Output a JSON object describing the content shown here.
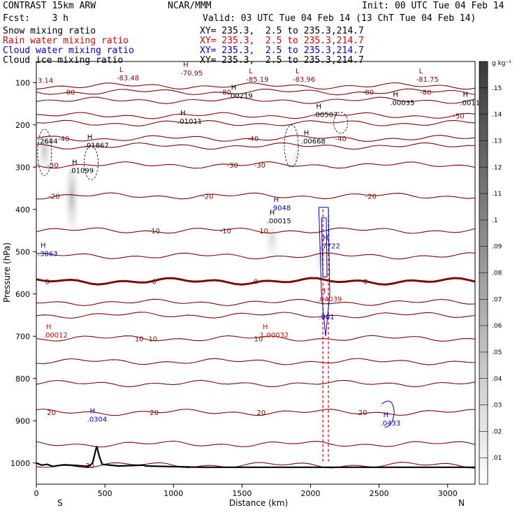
{
  "header": {
    "line1_left": "CONTRAST 15km ARW",
    "line1_center": "NCAR/MMM",
    "line1_right": "Init: 00 UTC Tue 04 Feb 14",
    "line2_left": "Fcst:    3 h",
    "line2_right": "Valid: 03 UTC Tue 04 Feb 14 (13 ChT Tue 04 Feb 14)",
    "fields": [
      {
        "name": "Snow mixing ratio",
        "xy": "XY= 235.3,  2.5 to 235.3,214.7",
        "color": "#000000"
      },
      {
        "name": "Rain water mixing ratio",
        "xy": "XY= 235.3,  2.5 to 235.3,214.7",
        "color": "#e00000"
      },
      {
        "name": "Cloud water mixing ratio",
        "xy": "XY= 235.3,  2.5 to 235.3,214.7",
        "color": "#0000cc"
      },
      {
        "name": "Cloud ice mixing ratio",
        "xy": "XY= 235.3,  2.5 to 235.3,214.7",
        "color": "#000000"
      }
    ]
  },
  "colorbar": {
    "unit": "g kg⁻¹",
    "ticks": [
      ".01",
      ".02",
      ".03",
      ".04",
      ".05",
      ".06",
      ".07",
      ".08",
      ".09",
      ".1",
      ".11",
      ".12",
      ".13",
      ".14",
      ".15"
    ]
  },
  "colors": {
    "temperature": "#7a0a0a",
    "rain": "#e00000",
    "cloud_water": "#0000cc",
    "terrain": "#000000"
  },
  "chart_data": {
    "type": "cross-section",
    "xlabel": "Distance (km)",
    "ylabel": "Pressure (hPa)",
    "x_ticks": [
      0,
      500,
      1000,
      1500,
      2000,
      2500,
      3000
    ],
    "y_ticks": [
      100,
      200,
      300,
      400,
      500,
      600,
      700,
      800,
      900,
      1000
    ],
    "xlim": [
      0,
      3200
    ],
    "ylim": [
      1050,
      50
    ],
    "x_end_labels": {
      "left": "S",
      "right": "N"
    },
    "temperature_contours_C": [
      {
        "value": -80,
        "p": 122,
        "labels": [
          {
            "x": 240,
            "text": "-80"
          },
          {
            "x": 1380,
            "text": "-80"
          },
          {
            "x": 2420,
            "text": "-80"
          },
          {
            "x": 2840,
            "text": "-80"
          }
        ]
      },
      {
        "value": -70,
        "p": 108,
        "labels": []
      },
      {
        "value": -60,
        "p": 142,
        "labels": []
      },
      {
        "value": -50,
        "p": 178,
        "labels": [
          {
            "x": 3080,
            "text": "-50"
          }
        ]
      },
      {
        "value": -45,
        "p": 196,
        "labels": []
      },
      {
        "value": -40,
        "p": 232,
        "labels": [
          {
            "x": 200,
            "text": "-40"
          },
          {
            "x": 1580,
            "text": "-40"
          },
          {
            "x": 2220,
            "text": "-40"
          }
        ]
      },
      {
        "value": -35,
        "p": 250,
        "labels": []
      },
      {
        "value": -30,
        "p": 295,
        "labels": [
          {
            "x": 120,
            "text": "-30"
          },
          {
            "x": 1430,
            "text": "-30"
          },
          {
            "x": 1630,
            "text": "-30"
          }
        ]
      },
      {
        "value": -20,
        "p": 368,
        "labels": [
          {
            "x": 1250,
            "text": "-20"
          },
          {
            "x": 2440,
            "text": "-20"
          },
          {
            "x": 130,
            "text": "-20"
          }
        ]
      },
      {
        "value": -10,
        "p": 450,
        "labels": [
          {
            "x": 860,
            "text": "-10"
          },
          {
            "x": 1380,
            "text": "-10"
          },
          {
            "x": 1650,
            "text": "-10"
          }
        ]
      },
      {
        "value": -5,
        "p": 510,
        "labels": []
      },
      {
        "value": 0,
        "p": 570,
        "labels": [
          {
            "x": 860,
            "text": "0"
          },
          {
            "x": 1600,
            "text": "0"
          },
          {
            "x": 2400,
            "text": "0"
          },
          {
            "x": 80,
            "text": "0"
          }
        ]
      },
      {
        "value": 3,
        "p": 620,
        "labels": []
      },
      {
        "value": 5,
        "p": 650,
        "labels": []
      },
      {
        "value": 10,
        "p": 705,
        "labels": [
          {
            "x": 750,
            "text": "10"
          },
          {
            "x": 850,
            "text": "10"
          },
          {
            "x": 1620,
            "text": "10"
          }
        ]
      },
      {
        "value": 13,
        "p": 760,
        "labels": []
      },
      {
        "value": 15,
        "p": 812,
        "labels": []
      },
      {
        "value": 20,
        "p": 880,
        "labels": [
          {
            "x": 110,
            "text": "20"
          },
          {
            "x": 860,
            "text": "20"
          },
          {
            "x": 1640,
            "text": "20"
          },
          {
            "x": 2380,
            "text": "20"
          }
        ]
      },
      {
        "value": 25,
        "p": 955,
        "labels": []
      },
      {
        "value": 30,
        "p": 1005,
        "labels": [
          {
            "x": 390,
            "text": "30"
          }
        ]
      }
    ],
    "extrema_labels": [
      {
        "x": 1040,
        "p": 83,
        "kind": "H",
        "value": "-70.95",
        "color": "#7a0a0a"
      },
      {
        "x": 575,
        "p": 95,
        "kind": "L",
        "value": "-83.48",
        "color": "#7a0a0a"
      },
      {
        "x": 1520,
        "p": 98,
        "kind": "L",
        "value": "-85.19",
        "color": "#7a0a0a"
      },
      {
        "x": 1860,
        "p": 98,
        "kind": "L",
        "value": "-83.96",
        "color": "#7a0a0a"
      },
      {
        "x": 2760,
        "p": 98,
        "kind": "L",
        "value": "-81.75",
        "color": "#7a0a0a"
      },
      {
        "x": 0,
        "p": 100,
        "kind": "",
        "value": "3.14",
        "color": "#7a0a0a"
      },
      {
        "x": 1390,
        "p": 137,
        "kind": "H",
        "value": ".00219",
        "color": "#000000"
      },
      {
        "x": 2570,
        "p": 153,
        "kind": "H",
        "value": ".00035",
        "color": "#000000"
      },
      {
        "x": 3080,
        "p": 153,
        "kind": "H",
        "value": ".0011",
        "color": "#000000"
      },
      {
        "x": 2010,
        "p": 181,
        "kind": "H",
        "value": ".00507",
        "color": "#000000"
      },
      {
        "x": 1020,
        "p": 197,
        "kind": "H",
        "value": ".01011",
        "color": "#000000"
      },
      {
        "x": 1920,
        "p": 244,
        "kind": "H",
        "value": ".00668",
        "color": "#000000"
      },
      {
        "x": 340,
        "p": 254,
        "kind": "H",
        "value": ".01867",
        "color": "#000000"
      },
      {
        "x": 0,
        "p": 244,
        "kind": "",
        "value": ".2644",
        "color": "#000000"
      },
      {
        "x": 230,
        "p": 314,
        "kind": "H",
        "value": ".01099",
        "color": "#000000"
      },
      {
        "x": 1670,
        "p": 433,
        "kind": "H",
        "value": ".00015",
        "color": "#000000"
      },
      {
        "x": 1700,
        "p": 402,
        "kind": "H",
        "value": ".9048",
        "color": "#0000cc"
      },
      {
        "x": 0,
        "p": 510,
        "kind": "H",
        "value": ".3863",
        "color": "#0000cc"
      },
      {
        "x": 2060,
        "p": 492,
        "kind": "H",
        "value": ".7722",
        "color": "#0000cc"
      },
      {
        "x": 2040,
        "p": 618,
        "kind": "H",
        "value": ".04039",
        "color": "#e00000"
      },
      {
        "x": 2050,
        "p": 660,
        "kind": "",
        "value": ".001",
        "color": "#0000cc"
      },
      {
        "x": 40,
        "p": 703,
        "kind": "H",
        "value": ".00012",
        "color": "#e00000"
      },
      {
        "x": 1620,
        "p": 703,
        "kind": "H",
        "value": "1.00032",
        "color": "#e00000"
      },
      {
        "x": 360,
        "p": 902,
        "kind": "H",
        "value": ".0304",
        "color": "#0000cc"
      },
      {
        "x": 2500,
        "p": 911,
        "kind": "H",
        "value": ".0433",
        "color": "#0000cc"
      }
    ],
    "snow_shading": [
      {
        "x": 60,
        "p_top": 200,
        "p_bot": 320,
        "intensity": 0.35
      },
      {
        "x": 260,
        "p_top": 270,
        "p_bot": 470,
        "intensity": 0.45
      },
      {
        "x": 1720,
        "p_top": 420,
        "p_bot": 520,
        "intensity": 0.25
      },
      {
        "x": 1900,
        "p_top": 250,
        "p_bot": 300,
        "intensity": 0.15
      },
      {
        "x": 2080,
        "p_top": 460,
        "p_bot": 560,
        "intensity": 0.2
      }
    ],
    "terrain": [
      [
        0,
        1000
      ],
      [
        40,
        1005
      ],
      [
        80,
        1003
      ],
      [
        120,
        1008
      ],
      [
        200,
        1004
      ],
      [
        300,
        1006
      ],
      [
        380,
        1008
      ],
      [
        410,
        1000
      ],
      [
        440,
        960
      ],
      [
        460,
        985
      ],
      [
        480,
        1003
      ],
      [
        600,
        1007
      ],
      [
        780,
        1005
      ],
      [
        800,
        1007
      ],
      [
        1200,
        1010
      ],
      [
        1600,
        1010
      ],
      [
        2000,
        1010
      ],
      [
        2500,
        1010
      ],
      [
        3200,
        1010
      ]
    ]
  }
}
